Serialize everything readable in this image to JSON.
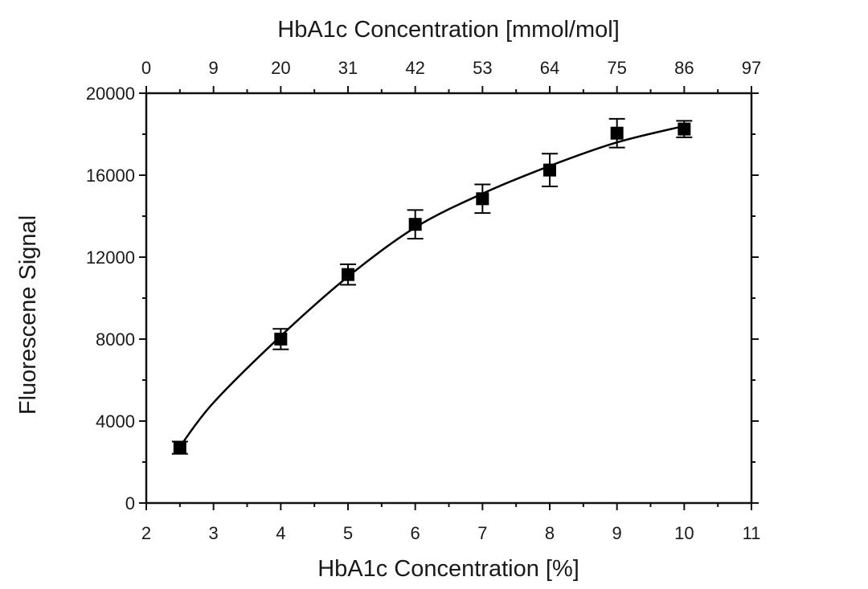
{
  "chart_data": {
    "type": "scatter",
    "title": "",
    "xlabel": "HbA1c Concentration [%]",
    "x2label": "HbA1c Concentration [mmol/mol]",
    "ylabel": "Fluorescene Signal",
    "xlim": [
      2,
      11
    ],
    "ylim": [
      0,
      20000
    ],
    "x_ticks": [
      "2",
      "3",
      "4",
      "5",
      "6",
      "7",
      "8",
      "9",
      "10",
      "11"
    ],
    "x2_ticks": [
      "0",
      "9",
      "20",
      "31",
      "42",
      "53",
      "64",
      "75",
      "86",
      "97"
    ],
    "y_ticks": [
      "0",
      "4000",
      "8000",
      "12000",
      "16000",
      "20000"
    ],
    "grid": false,
    "series": [
      {
        "x": [
          2.5,
          4,
          5,
          6,
          7,
          8,
          9,
          10
        ],
        "y": [
          2700,
          8000,
          11150,
          13600,
          14850,
          16250,
          18050,
          18250
        ],
        "error": [
          300,
          500,
          500,
          700,
          700,
          800,
          700,
          400
        ],
        "color": "#000000",
        "marker": "square"
      }
    ],
    "fit_curve": {
      "x": [
        2.5,
        3,
        4,
        5,
        6,
        7,
        8,
        9,
        10
      ],
      "y": [
        2750,
        4900,
        8150,
        11050,
        13450,
        15100,
        16450,
        17600,
        18400
      ],
      "color": "#000000"
    }
  }
}
